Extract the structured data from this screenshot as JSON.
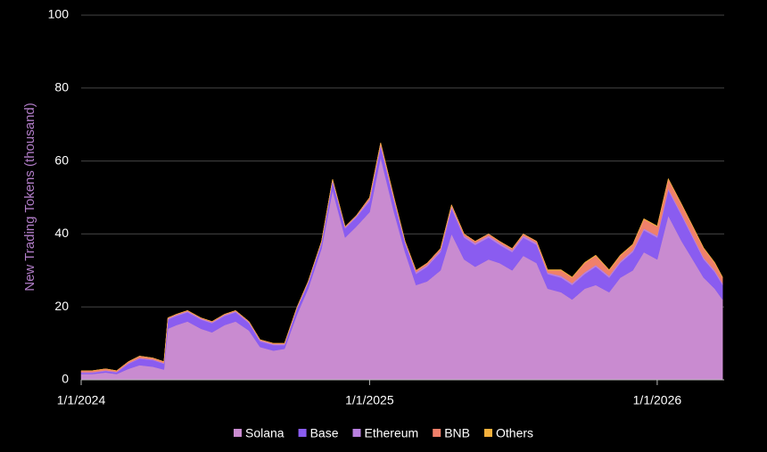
{
  "chart_data": {
    "type": "stacked_area",
    "y_label": "New Trading Tokens (thousand)",
    "x": [
      "2024-01-01",
      "2024-01-15",
      "2024-02-01",
      "2024-02-15",
      "2024-03-01",
      "2024-03-15",
      "2024-04-01",
      "2024-04-15",
      "2024-04-20",
      "2024-05-01",
      "2024-05-15",
      "2024-06-01",
      "2024-06-15",
      "2024-07-01",
      "2024-07-15",
      "2024-08-01",
      "2024-08-15",
      "2024-09-01",
      "2024-09-15",
      "2024-10-01",
      "2024-10-15",
      "2024-11-01",
      "2024-11-15",
      "2024-12-01",
      "2024-12-15",
      "2025-01-01",
      "2025-01-15",
      "2025-02-01",
      "2025-02-15",
      "2025-03-01",
      "2025-03-15",
      "2025-04-01",
      "2025-04-15",
      "2025-05-01",
      "2025-05-15",
      "2025-06-01",
      "2025-06-15",
      "2025-07-01",
      "2025-07-15",
      "2025-08-01",
      "2025-08-15",
      "2025-09-01",
      "2025-09-15",
      "2025-10-01",
      "2025-10-15",
      "2025-11-01",
      "2025-11-15",
      "2025-12-01",
      "2025-12-15",
      "2026-01-01",
      "2026-01-15",
      "2026-02-01",
      "2026-02-15",
      "2026-03-01",
      "2026-03-15",
      "2026-03-25"
    ],
    "series": [
      {
        "name": "Solana",
        "color": "#c98bd0",
        "values": [
          1.6,
          1.6,
          2.0,
          1.6,
          3.0,
          4.0,
          3.6,
          2.8,
          14,
          15,
          16,
          14,
          13,
          15,
          16,
          13.5,
          9,
          8,
          8.5,
          18,
          25,
          36,
          52,
          39,
          42,
          46,
          61,
          46,
          35,
          26,
          27,
          30,
          40,
          33,
          31,
          33,
          32,
          30,
          34,
          32,
          25,
          24,
          22,
          25,
          26,
          24,
          28,
          30,
          35,
          33,
          45,
          38,
          33,
          28,
          25,
          22
        ]
      },
      {
        "name": "Base",
        "color": "#8a5cf0",
        "values": [
          0.3,
          0.3,
          0.4,
          0.4,
          1.4,
          1.8,
          1.8,
          1.6,
          2.5,
          2.5,
          2.5,
          2.5,
          2.5,
          2.5,
          2.5,
          2,
          1.5,
          1.5,
          1,
          1.5,
          1.5,
          1.5,
          2.5,
          2.5,
          2.5,
          3,
          3,
          3,
          2.5,
          3,
          4,
          5,
          7,
          6,
          6,
          6,
          5,
          5,
          5,
          5,
          4,
          4,
          4,
          4,
          5,
          4,
          4,
          5,
          6,
          6,
          7,
          7,
          6,
          5,
          4.5,
          4
        ]
      },
      {
        "name": "Ethereum",
        "color": "#b980e0",
        "values": [
          0.2,
          0.2,
          0.2,
          0.2,
          0.2,
          0.2,
          0.2,
          0.2,
          0.3,
          0.3,
          0.3,
          0.3,
          0.3,
          0.3,
          0.3,
          0.3,
          0.3,
          0.3,
          0.3,
          0.3,
          0.3,
          0.3,
          0.3,
          0.3,
          0.3,
          0.5,
          0.5,
          0.5,
          0.3,
          0.5,
          0.5,
          0.5,
          0.5,
          0.5,
          0.5,
          0.5,
          0.5,
          0.5,
          0.5,
          0.5,
          0.4,
          0.5,
          0.5,
          0.5,
          0.5,
          0.5,
          0.5,
          0.5,
          0.5,
          0.5,
          0.5,
          0.5,
          0.5,
          0.5,
          0.5,
          0.5
        ]
      },
      {
        "name": "BNB",
        "color": "#f0806a",
        "values": [
          0.4,
          0.4,
          0.4,
          0.3,
          0.4,
          0.5,
          0.4,
          0.4,
          0.2,
          0.2,
          0.2,
          0.2,
          0.2,
          0.2,
          0.2,
          0.2,
          0.2,
          0.2,
          0.2,
          0.2,
          0.2,
          0.2,
          0.2,
          0.2,
          0.2,
          0.5,
          0.5,
          0.5,
          0.2,
          0.5,
          0.5,
          0.5,
          0.5,
          0.5,
          0.5,
          0.5,
          0.5,
          0.5,
          0.5,
          0.5,
          0.6,
          1.5,
          1.5,
          2.5,
          2.5,
          1.5,
          1.5,
          1.5,
          2.5,
          2.5,
          2.5,
          2.5,
          2.5,
          2.5,
          2,
          1.5
        ]
      },
      {
        "name": "Others",
        "color": "#f4b03c",
        "values": [
          0,
          0,
          0,
          0,
          0,
          0,
          0,
          0,
          0,
          0,
          0,
          0,
          0,
          0,
          0,
          0,
          0,
          0,
          0,
          0,
          0,
          0,
          0,
          0,
          0,
          0,
          0,
          0,
          0,
          0,
          0,
          0,
          0,
          0,
          0,
          0,
          0,
          0,
          0,
          0,
          0.2,
          0.2,
          0.2,
          0.2,
          0.2,
          0.2,
          0.2,
          0.2,
          0.2,
          0.2,
          0.2,
          0.2,
          0.2,
          0.2,
          0.2,
          0.2
        ]
      }
    ],
    "xlim": [
      "2024-01-01",
      "2026-03-27"
    ],
    "xticks": [
      {
        "value": "2024-01-01",
        "label": "1/1/2024"
      },
      {
        "value": "2025-01-01",
        "label": "1/1/2025"
      },
      {
        "value": "2026-01-01",
        "label": "1/1/2026"
      }
    ],
    "ylim": [
      0,
      100
    ],
    "yticks": [
      0,
      20,
      40,
      60,
      80,
      100
    ],
    "grid": true,
    "legend": "bottom"
  }
}
